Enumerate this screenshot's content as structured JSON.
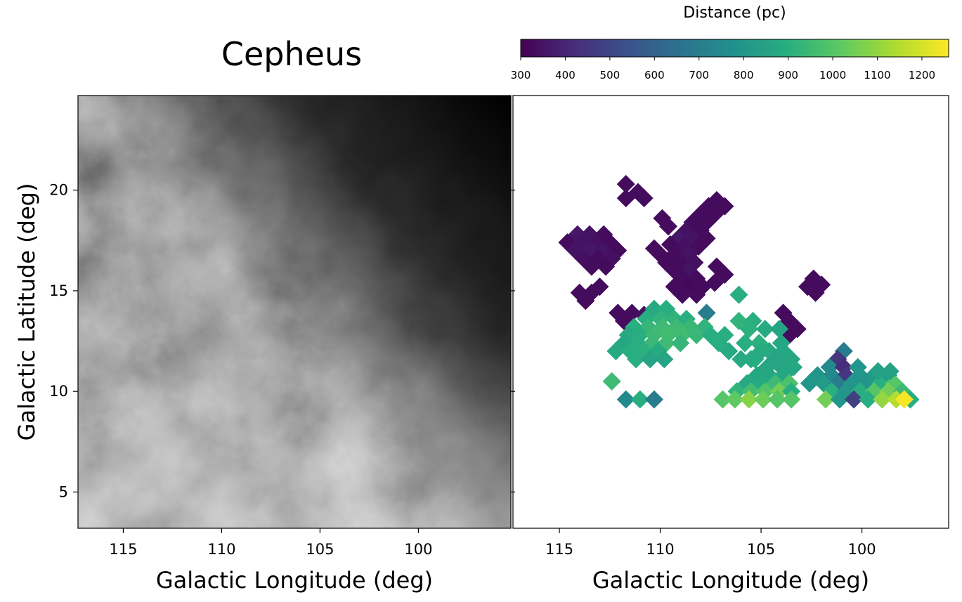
{
  "chart_data": [
    {
      "type": "heatmap",
      "title": "Cepheus",
      "panel": "left",
      "xlabel": "Galactic Longitude (deg)",
      "ylabel": "Galactic Latitude (deg)",
      "xlim": [
        117.3,
        95.3
      ],
      "ylim": [
        3.2,
        24.7
      ],
      "xticks": [
        115,
        110,
        105,
        100
      ],
      "yticks": [
        5,
        10,
        15,
        20
      ],
      "colormap": "grayscale",
      "grid": false
    },
    {
      "type": "heatmap",
      "panel": "right",
      "xlabel": "Galactic Longitude (deg)",
      "xlim": [
        117.3,
        95.7
      ],
      "ylim": [
        3.2,
        24.7
      ],
      "xticks": [
        115,
        110,
        105,
        100
      ],
      "grid": false,
      "colorbar": {
        "label": "Distance (pc)",
        "range": [
          300,
          1260
        ],
        "ticks": [
          300,
          400,
          500,
          600,
          700,
          800,
          900,
          1000,
          1100,
          1200
        ],
        "colormap": "viridis",
        "placement": "top"
      },
      "cell_size_deg": 0.62,
      "pixels": [
        [
          111.7,
          20.3,
          330
        ],
        [
          111.1,
          19.9,
          330
        ],
        [
          110.8,
          19.6,
          330
        ],
        [
          111.7,
          19.6,
          330
        ],
        [
          107.2,
          19.5,
          330
        ],
        [
          106.8,
          19.2,
          330
        ],
        [
          107.6,
          19.2,
          330
        ],
        [
          108.0,
          18.8,
          330
        ],
        [
          107.3,
          18.8,
          330
        ],
        [
          108.4,
          18.4,
          330
        ],
        [
          107.7,
          18.4,
          330
        ],
        [
          108.7,
          18.0,
          340
        ],
        [
          108.0,
          18.0,
          330
        ],
        [
          109.9,
          18.6,
          330
        ],
        [
          109.6,
          18.2,
          330
        ],
        [
          109.1,
          17.6,
          360
        ],
        [
          108.4,
          17.6,
          350
        ],
        [
          107.7,
          17.6,
          330
        ],
        [
          109.5,
          17.3,
          330
        ],
        [
          108.8,
          17.2,
          340
        ],
        [
          108.1,
          17.2,
          330
        ],
        [
          110.3,
          17.1,
          330
        ],
        [
          110.0,
          16.8,
          330
        ],
        [
          109.3,
          16.8,
          330
        ],
        [
          108.6,
          16.8,
          350
        ],
        [
          109.7,
          16.4,
          330
        ],
        [
          109.0,
          16.4,
          330
        ],
        [
          108.3,
          16.4,
          340
        ],
        [
          107.2,
          16.2,
          330
        ],
        [
          106.8,
          15.8,
          330
        ],
        [
          107.3,
          15.4,
          330
        ],
        [
          109.3,
          16.0,
          330
        ],
        [
          108.6,
          16.0,
          350
        ],
        [
          108.9,
          15.6,
          330
        ],
        [
          108.2,
          15.6,
          330
        ],
        [
          109.3,
          15.2,
          330
        ],
        [
          108.6,
          15.2,
          320
        ],
        [
          107.9,
          15.2,
          330
        ],
        [
          108.9,
          14.8,
          330
        ],
        [
          108.2,
          14.8,
          330
        ],
        [
          114.1,
          17.8,
          360
        ],
        [
          113.5,
          17.8,
          350
        ],
        [
          112.8,
          17.8,
          330
        ],
        [
          114.6,
          17.4,
          330
        ],
        [
          113.9,
          17.4,
          350
        ],
        [
          113.2,
          17.4,
          340
        ],
        [
          112.5,
          17.4,
          330
        ],
        [
          114.2,
          17.0,
          350
        ],
        [
          113.5,
          17.0,
          360
        ],
        [
          112.8,
          17.0,
          350
        ],
        [
          112.1,
          17.0,
          330
        ],
        [
          113.8,
          16.6,
          340
        ],
        [
          113.1,
          16.6,
          330
        ],
        [
          112.4,
          16.6,
          340
        ],
        [
          113.4,
          16.2,
          330
        ],
        [
          112.7,
          16.2,
          330
        ],
        [
          113.0,
          15.2,
          330
        ],
        [
          113.4,
          14.9,
          330
        ],
        [
          114.0,
          14.9,
          330
        ],
        [
          113.7,
          14.5,
          330
        ],
        [
          102.4,
          15.6,
          330
        ],
        [
          102.0,
          15.3,
          330
        ],
        [
          102.7,
          15.2,
          330
        ],
        [
          102.3,
          14.9,
          330
        ],
        [
          112.1,
          13.9,
          330
        ],
        [
          111.4,
          13.9,
          330
        ],
        [
          110.8,
          13.8,
          340
        ],
        [
          111.8,
          13.5,
          330
        ],
        [
          103.9,
          13.9,
          330
        ],
        [
          103.6,
          13.5,
          330
        ],
        [
          103.2,
          13.1,
          330
        ],
        [
          103.6,
          12.8,
          330
        ],
        [
          106.1,
          14.8,
          900
        ],
        [
          107.7,
          13.9,
          700
        ],
        [
          110.3,
          14.1,
          880
        ],
        [
          109.7,
          14.1,
          900
        ],
        [
          110.7,
          13.6,
          900
        ],
        [
          110.0,
          13.6,
          920
        ],
        [
          109.3,
          13.6,
          920
        ],
        [
          108.7,
          13.6,
          900
        ],
        [
          111.3,
          13.2,
          900
        ],
        [
          110.6,
          13.2,
          930
        ],
        [
          109.9,
          13.2,
          950
        ],
        [
          109.2,
          13.2,
          950
        ],
        [
          108.5,
          13.2,
          940
        ],
        [
          107.8,
          13.2,
          920
        ],
        [
          111.6,
          12.8,
          880
        ],
        [
          111.0,
          12.8,
          900
        ],
        [
          110.3,
          12.8,
          950
        ],
        [
          109.6,
          12.8,
          960
        ],
        [
          108.9,
          12.8,
          960
        ],
        [
          108.2,
          12.8,
          940
        ],
        [
          107.5,
          12.8,
          900
        ],
        [
          111.8,
          12.4,
          870
        ],
        [
          111.1,
          12.4,
          900
        ],
        [
          110.4,
          12.4,
          940
        ],
        [
          109.7,
          12.4,
          950
        ],
        [
          109.0,
          12.4,
          930
        ],
        [
          112.2,
          12.0,
          880
        ],
        [
          111.5,
          12.0,
          900
        ],
        [
          110.8,
          12.0,
          910
        ],
        [
          110.1,
          12.0,
          890
        ],
        [
          111.2,
          11.6,
          900
        ],
        [
          110.5,
          11.6,
          860
        ],
        [
          109.8,
          11.6,
          860
        ],
        [
          106.8,
          12.8,
          900
        ],
        [
          107.1,
          12.4,
          900
        ],
        [
          106.6,
          12.0,
          880
        ],
        [
          106.0,
          11.6,
          880
        ],
        [
          105.3,
          11.6,
          900
        ],
        [
          105.8,
          12.4,
          900
        ],
        [
          105.1,
          12.4,
          910
        ],
        [
          104.6,
          12.0,
          880
        ],
        [
          103.9,
          12.0,
          870
        ],
        [
          103.5,
          11.6,
          870
        ],
        [
          106.1,
          13.5,
          920
        ],
        [
          105.4,
          13.5,
          900
        ],
        [
          104.8,
          13.1,
          880
        ],
        [
          104.1,
          13.1,
          860
        ],
        [
          105.6,
          13.1,
          910
        ],
        [
          105.0,
          12.0,
          890
        ],
        [
          104.3,
          11.6,
          860
        ],
        [
          104.7,
          11.2,
          860
        ],
        [
          104.0,
          11.2,
          860
        ],
        [
          103.4,
          11.2,
          870
        ],
        [
          105.2,
          10.8,
          870
        ],
        [
          104.6,
          10.8,
          870
        ],
        [
          103.9,
          10.8,
          870
        ],
        [
          105.7,
          10.4,
          880
        ],
        [
          105.0,
          10.4,
          880
        ],
        [
          104.3,
          10.4,
          950
        ],
        [
          103.6,
          10.4,
          980
        ],
        [
          106.2,
          10.0,
          920
        ],
        [
          105.5,
          10.0,
          960
        ],
        [
          104.8,
          10.0,
          990
        ],
        [
          104.1,
          10.0,
          1050
        ],
        [
          103.5,
          10.0,
          900
        ],
        [
          106.9,
          9.6,
          1000
        ],
        [
          106.3,
          9.6,
          1020
        ],
        [
          105.6,
          9.6,
          1080
        ],
        [
          104.9,
          9.6,
          1040
        ],
        [
          104.2,
          9.6,
          1000
        ],
        [
          103.5,
          9.6,
          1000
        ],
        [
          105.5,
          11.6,
          890
        ],
        [
          104.0,
          12.4,
          870
        ],
        [
          112.4,
          10.5,
          950
        ],
        [
          111.7,
          9.6,
          750
        ],
        [
          111.0,
          9.6,
          900
        ],
        [
          110.3,
          9.6,
          700
        ],
        [
          100.9,
          12.0,
          700
        ],
        [
          101.2,
          11.6,
          450
        ],
        [
          101.6,
          11.2,
          750
        ],
        [
          100.9,
          11.2,
          420
        ],
        [
          100.2,
          11.2,
          800
        ],
        [
          102.2,
          10.8,
          800
        ],
        [
          101.5,
          10.8,
          750
        ],
        [
          100.8,
          10.8,
          450
        ],
        [
          100.1,
          10.8,
          800
        ],
        [
          99.4,
          10.8,
          820
        ],
        [
          98.7,
          10.8,
          820
        ],
        [
          102.6,
          10.4,
          800
        ],
        [
          101.9,
          10.4,
          820
        ],
        [
          101.2,
          10.4,
          700
        ],
        [
          100.5,
          10.4,
          800
        ],
        [
          99.8,
          10.4,
          800
        ],
        [
          99.1,
          10.4,
          900
        ],
        [
          98.4,
          10.4,
          1000
        ],
        [
          101.5,
          10.0,
          900
        ],
        [
          100.8,
          10.0,
          800
        ],
        [
          100.1,
          10.0,
          900
        ],
        [
          99.4,
          10.0,
          1000
        ],
        [
          98.7,
          10.0,
          1050
        ],
        [
          98.0,
          10.0,
          950
        ],
        [
          101.8,
          9.6,
          1050
        ],
        [
          101.1,
          9.6,
          800
        ],
        [
          100.4,
          9.6,
          480
        ],
        [
          99.7,
          9.6,
          900
        ],
        [
          99.0,
          9.6,
          1100
        ],
        [
          98.3,
          9.6,
          1150
        ],
        [
          97.6,
          9.6,
          900
        ],
        [
          97.9,
          9.6,
          1250
        ],
        [
          99.2,
          11.0,
          850
        ],
        [
          98.6,
          11.0,
          850
        ]
      ]
    }
  ]
}
